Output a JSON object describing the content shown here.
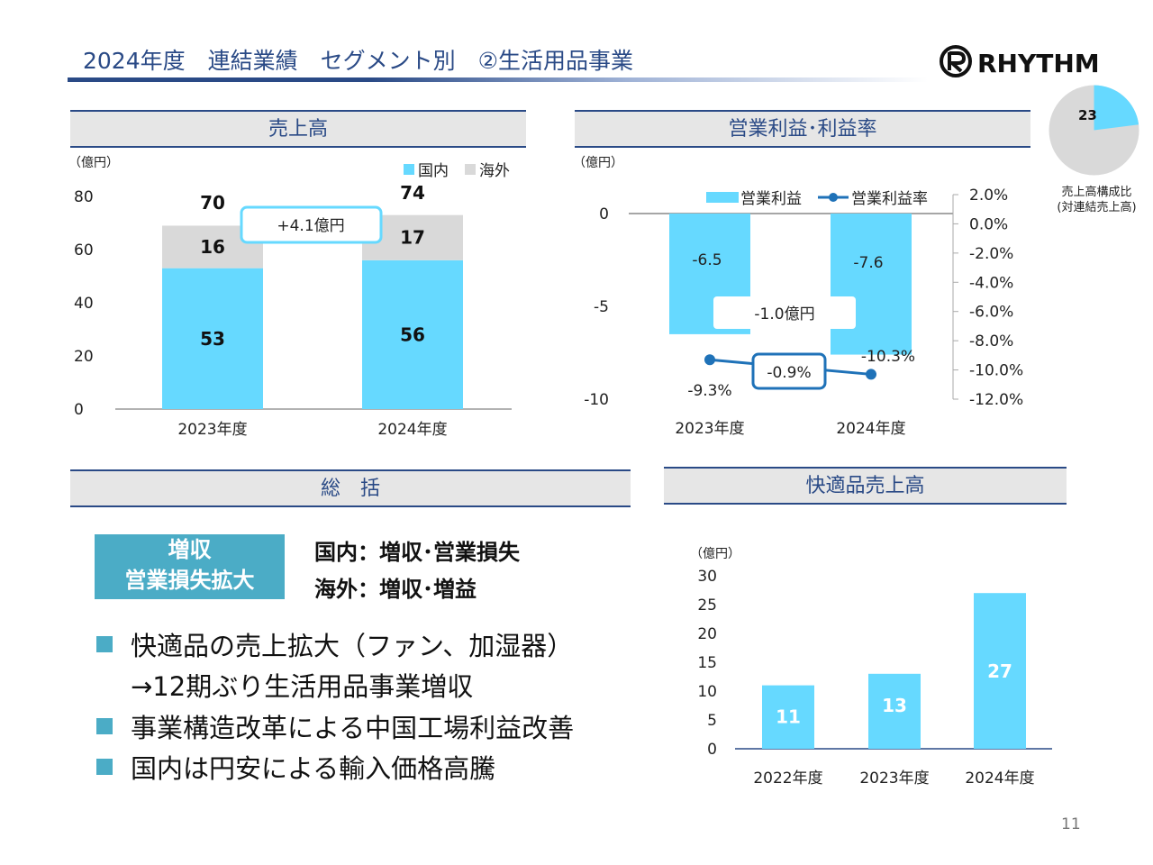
{
  "header": {
    "title": "2024年度　連結業績　セグメント別　②生活用品事業",
    "logo_text": "RHYTHM"
  },
  "colors": {
    "domestic": "#66d9ff",
    "overseas": "#d9d9d9",
    "accent": "#1f72b8",
    "heading": "#2a4a86",
    "badge": "#4bacc6"
  },
  "sections": {
    "sales": "売上高",
    "profit": "営業利益･利益率",
    "summary": "総　括",
    "comfort": "快適品売上高"
  },
  "mini_pie": {
    "value_label": "23",
    "share": 0.23,
    "caption_line1": "売上高構成比",
    "caption_line2": "(対連結売上高)"
  },
  "chart_data": [
    {
      "type": "bar",
      "stacked": true,
      "unit_label": "（億円）",
      "categories": [
        "2023年度",
        "2024年度"
      ],
      "series": [
        {
          "name": "国内",
          "values": [
            53,
            56
          ]
        },
        {
          "name": "海外",
          "values": [
            16,
            17
          ]
        }
      ],
      "totals": [
        70,
        74
      ],
      "ylim": [
        0,
        80
      ],
      "yticks": [
        0,
        20,
        40,
        60,
        80
      ],
      "annotation": "+4.1億円",
      "legend": "top-right"
    },
    {
      "type": "bar",
      "unit_label": "（億円）",
      "categories": [
        "2023年度",
        "2024年度"
      ],
      "series": [
        {
          "name": "営業利益",
          "values": [
            -6.5,
            -7.6
          ],
          "axis": "left"
        },
        {
          "name": "営業利益率",
          "values": [
            -9.3,
            -10.3
          ],
          "axis": "right",
          "render": "line"
        }
      ],
      "bar_labels": [
        "-6.5",
        "-7.6"
      ],
      "rate_labels": [
        "-9.3%",
        "-10.3%"
      ],
      "ylim": [
        -10,
        0
      ],
      "yticks": [
        "0",
        "-5",
        "-10"
      ],
      "y2lim": [
        -12,
        2
      ],
      "y2ticks": [
        "2.0%",
        "0.0%",
        "-2.0%",
        "-4.0%",
        "-6.0%",
        "-8.0%",
        "-10.0%",
        "-12.0%"
      ],
      "annotation_profit": "-1.0億円",
      "annotation_rate": "-0.9%",
      "legend": "top"
    },
    {
      "type": "bar",
      "unit_label": "（億円）",
      "categories": [
        "2022年度",
        "2023年度",
        "2024年度"
      ],
      "values": [
        11,
        13,
        27
      ],
      "ylim": [
        0,
        30
      ],
      "yticks": [
        0,
        5,
        10,
        15,
        20,
        25,
        30
      ]
    }
  ],
  "summary": {
    "badge_line1": "増収",
    "badge_line2": "営業損失拡大",
    "domestic": "国内：増収･営業損失",
    "overseas": "海外：増収･増益",
    "bullets": [
      "快適品の売上拡大（ファン、加湿器）",
      "→12期ぶり生活用品事業増収",
      "事業構造改革による中国工場利益改善",
      "国内は円安による輸入価格高騰"
    ]
  },
  "page_number": "11"
}
